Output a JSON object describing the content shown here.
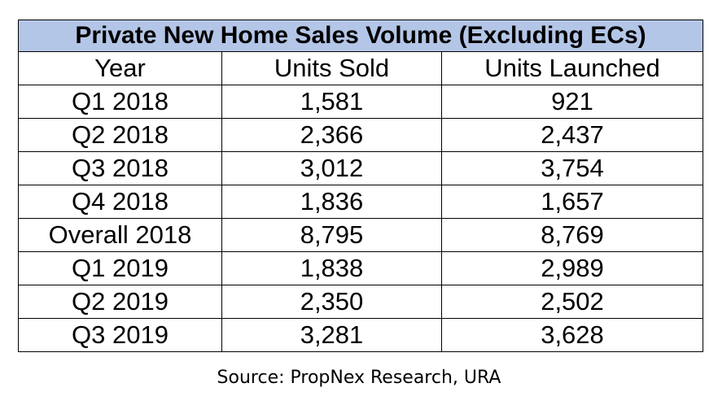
{
  "chart_data": {
    "type": "table",
    "title": "Private New Home Sales Volume (Excluding ECs)",
    "columns": [
      "Year",
      "Units Sold",
      "Units Launched"
    ],
    "rows": [
      [
        "Q1 2018",
        "1,581",
        "921"
      ],
      [
        "Q2 2018",
        "2,366",
        "2,437"
      ],
      [
        "Q3 2018",
        "3,012",
        "3,754"
      ],
      [
        "Q4 2018",
        "1,836",
        "1,657"
      ],
      [
        "Overall 2018",
        "8,795",
        "8,769"
      ],
      [
        "Q1 2019",
        "1,838",
        "2,989"
      ],
      [
        "Q2 2019",
        "2,350",
        "2,502"
      ],
      [
        "Q3 2019",
        "3,281",
        "3,628"
      ]
    ],
    "source": "Source: PropNex Research, URA"
  },
  "colors": {
    "title_background": "#b4c6e7",
    "border": "#000000"
  }
}
